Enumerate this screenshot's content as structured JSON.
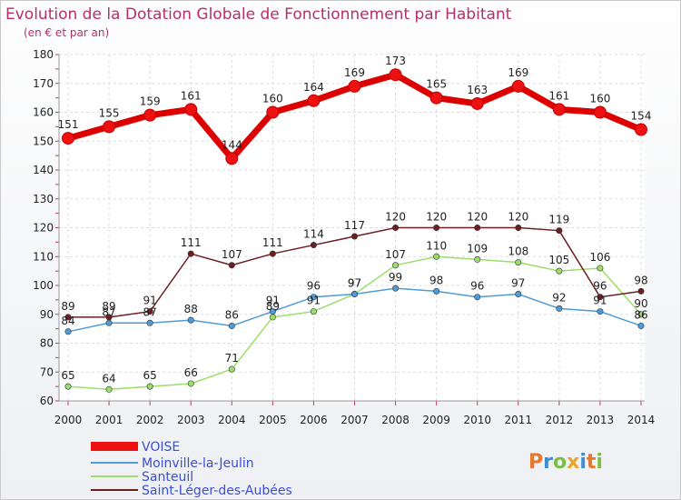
{
  "chart_data": {
    "type": "line",
    "title": "Evolution de la Dotation Globale de Fonctionnement par Habitant",
    "subtitle": "(en € et par an)",
    "x": [
      "2000",
      "2001",
      "2002",
      "2003",
      "2004",
      "2005",
      "2006",
      "2007",
      "2008",
      "2009",
      "2010",
      "2011",
      "2012",
      "2013",
      "2014"
    ],
    "ylim": [
      60,
      180
    ],
    "yticks": [
      60,
      70,
      80,
      90,
      100,
      110,
      120,
      130,
      140,
      150,
      160,
      170,
      180
    ],
    "grid": true,
    "legend_position": "bottom-left",
    "series": [
      {
        "name": "VOISE",
        "color": "#ee1111",
        "values": [
          151,
          155,
          159,
          161,
          144,
          160,
          164,
          169,
          173,
          165,
          163,
          169,
          161,
          160,
          154
        ]
      },
      {
        "name": "Moinville-la-Jeulin",
        "color": "#4e9bd6",
        "values": [
          84,
          87,
          87,
          88,
          86,
          91,
          96,
          97,
          99,
          98,
          96,
          97,
          92,
          91,
          86
        ]
      },
      {
        "name": "Santeuil",
        "color": "#9bde6c",
        "values": [
          65,
          64,
          65,
          66,
          71,
          89,
          91,
          97,
          107,
          110,
          109,
          108,
          105,
          106,
          90
        ]
      },
      {
        "name": "Saint-Léger-des-Aubées",
        "color": "#6b1f23",
        "values": [
          89,
          89,
          91,
          111,
          107,
          111,
          114,
          117,
          120,
          120,
          120,
          120,
          119,
          96,
          98
        ]
      }
    ]
  },
  "logo": {
    "text": "Proxiti"
  }
}
